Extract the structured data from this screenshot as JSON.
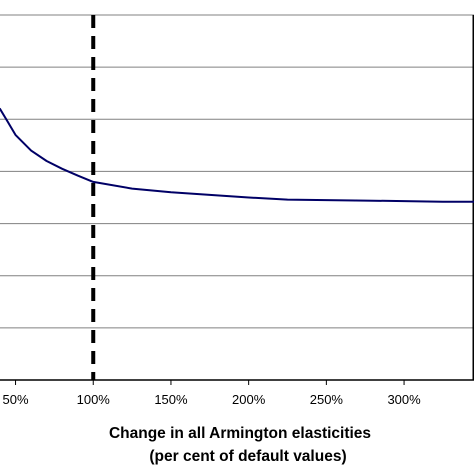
{
  "chart_data": {
    "type": "line",
    "xlabel": "Change in all Armington elasticities",
    "xlabel_line2": "(per cent of default values)",
    "ylabel": "",
    "x_ticks": [
      50,
      100,
      150,
      200,
      250,
      300
    ],
    "x_tick_labels": [
      "50%",
      "100%",
      "150%",
      "200%",
      "250%",
      "300%"
    ],
    "xlim": [
      40,
      345
    ],
    "ylim": [
      0,
      7
    ],
    "y_gridlines": [
      1,
      2,
      3,
      4,
      5,
      6,
      7
    ],
    "grid": "horizontal",
    "reference_line": {
      "x": 100,
      "style": "dashed",
      "color": "#000000"
    },
    "series": [
      {
        "color": "#000066",
        "x": [
          40,
          45,
          50,
          60,
          70,
          80,
          90,
          100,
          125,
          150,
          175,
          200,
          225,
          250,
          275,
          300,
          325,
          345
        ],
        "y": [
          5.2,
          4.95,
          4.7,
          4.4,
          4.2,
          4.05,
          3.92,
          3.8,
          3.67,
          3.6,
          3.55,
          3.5,
          3.46,
          3.45,
          3.44,
          3.43,
          3.42,
          3.42
        ]
      }
    ],
    "colors": {
      "grid": "#808080",
      "frame": "#000000"
    }
  }
}
